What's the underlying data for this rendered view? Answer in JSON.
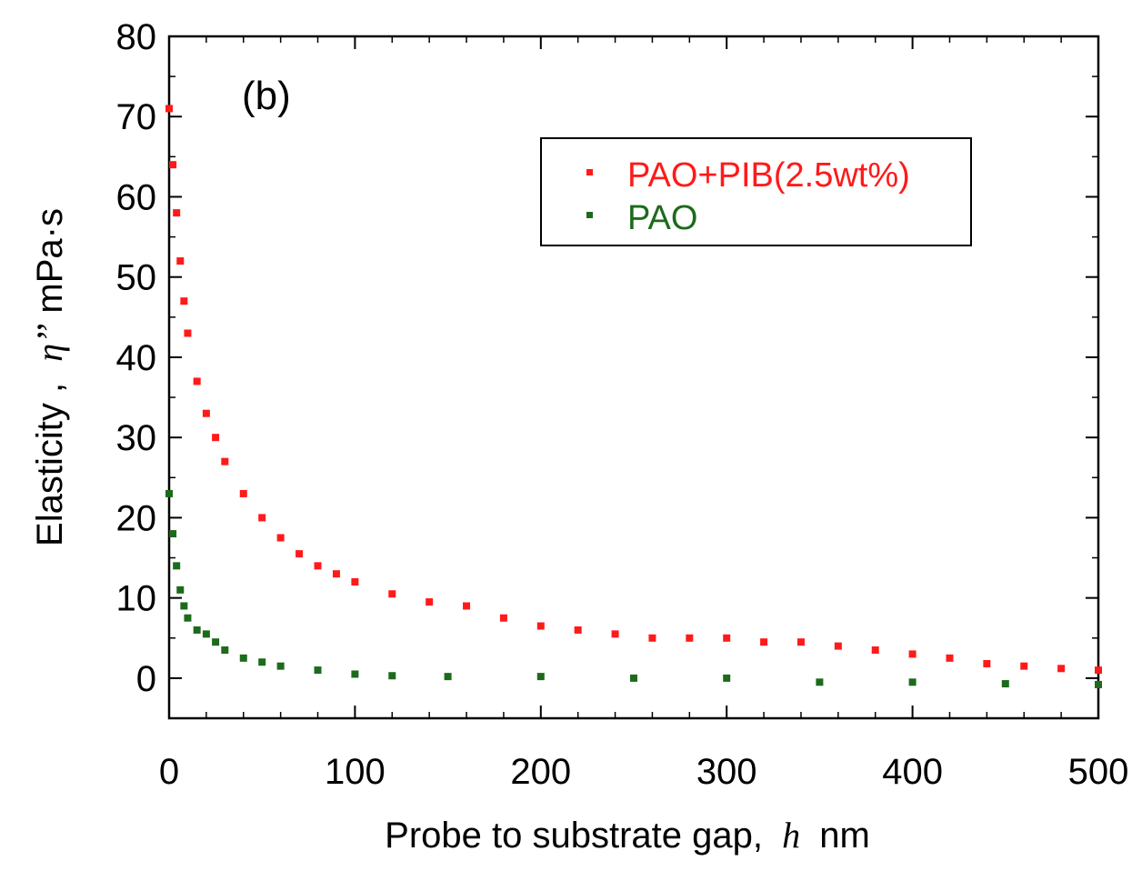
{
  "chart_data": {
    "type": "scatter",
    "panel_label": "(b)",
    "xlabel_prefix": "Probe to substrate gap,",
    "xlabel_var": "h",
    "xlabel_unit": "nm",
    "ylabel_prefix": "Elasticity ,",
    "ylabel_var": "η’’",
    "ylabel_unit": "mPa·s",
    "xlim": [
      0,
      500
    ],
    "ylim": [
      -5,
      80
    ],
    "x_ticks": [
      "0",
      "100",
      "200",
      "300",
      "400",
      "500"
    ],
    "y_ticks": [
      "0",
      "10",
      "20",
      "30",
      "40",
      "50",
      "60",
      "70",
      "80"
    ],
    "legend_position": "top-right",
    "series": [
      {
        "name": "PAO+PIB(2.5wt%)",
        "color": "#ff1a1a",
        "x": [
          0,
          2,
          4,
          6,
          8,
          10,
          15,
          20,
          25,
          30,
          40,
          50,
          60,
          70,
          80,
          90,
          100,
          120,
          140,
          160,
          180,
          200,
          220,
          240,
          260,
          280,
          300,
          320,
          340,
          360,
          380,
          400,
          420,
          440,
          460,
          480,
          500
        ],
        "y": [
          71,
          64,
          58,
          52,
          47,
          43,
          37,
          33,
          30,
          27,
          23,
          20,
          17.5,
          15.5,
          14,
          13,
          12,
          10.5,
          9.5,
          9,
          7.5,
          6.5,
          6,
          5.5,
          5,
          5,
          5,
          4.5,
          4.5,
          4,
          3.5,
          3,
          2.5,
          1.8,
          1.5,
          1.2,
          1
        ]
      },
      {
        "name": "PAO",
        "color": "#1d6a1d",
        "x": [
          0,
          2,
          4,
          6,
          8,
          10,
          15,
          20,
          25,
          30,
          40,
          50,
          60,
          80,
          100,
          120,
          150,
          200,
          250,
          300,
          350,
          400,
          450,
          500
        ],
        "y": [
          23,
          18,
          14,
          11,
          9,
          7.5,
          6,
          5.5,
          4.5,
          3.5,
          2.5,
          2,
          1.5,
          1,
          0.5,
          0.3,
          0.2,
          0.2,
          0,
          0,
          -0.5,
          -0.5,
          -0.7,
          -0.8
        ]
      }
    ]
  }
}
